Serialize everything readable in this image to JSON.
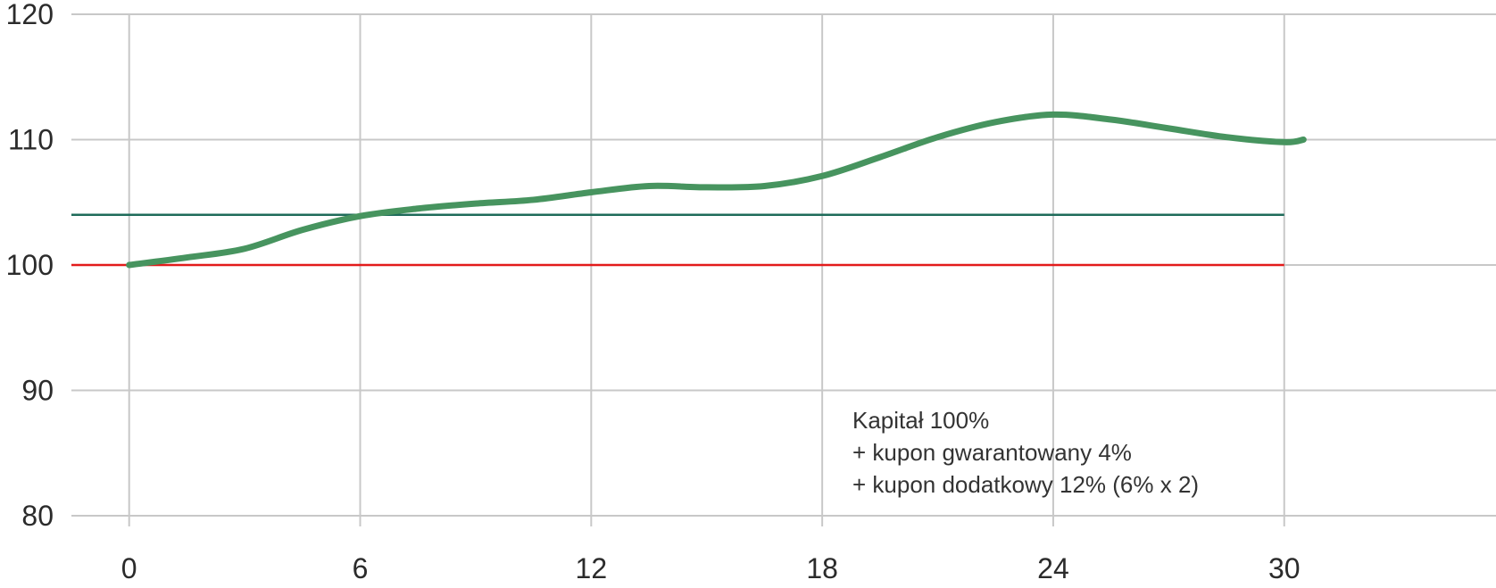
{
  "chart_data": {
    "type": "line",
    "title": "",
    "xlabel": "",
    "ylabel": "",
    "xlim": [
      -1.5,
      35.5
    ],
    "ylim": [
      80,
      120
    ],
    "x_ticks": [
      "0",
      "6",
      "12",
      "18",
      "24",
      "30"
    ],
    "y_ticks": [
      "80",
      "90",
      "100",
      "110",
      "120"
    ],
    "grid": true,
    "series": [
      {
        "color": "#47945f",
        "x": [
          0,
          1.5,
          3,
          4.5,
          6,
          7.5,
          9,
          10.5,
          12,
          13.5,
          15,
          16.5,
          18,
          19.5,
          21,
          22.5,
          24,
          25.5,
          27,
          28.5,
          30,
          30.5
        ],
        "y": [
          100,
          100.6,
          101.3,
          102.8,
          103.9,
          104.5,
          104.9,
          105.2,
          105.8,
          106.3,
          106.2,
          106.3,
          107.1,
          108.6,
          110.2,
          111.4,
          112,
          111.6,
          110.9,
          110.2,
          109.8,
          110
        ]
      }
    ],
    "reference_lines": [
      {
        "y": 104,
        "x_range": [
          -1.5,
          30
        ],
        "color": "#1e6b5a"
      },
      {
        "y": 100,
        "x_range": [
          -1.5,
          30
        ],
        "color": "#e21b1b"
      }
    ],
    "annotation": {
      "lines": [
        "Kapitał 100%",
        "+ kupon gwarantowany 4%",
        "+ kupon dodatkowy 12% (6% x 2)"
      ]
    }
  }
}
